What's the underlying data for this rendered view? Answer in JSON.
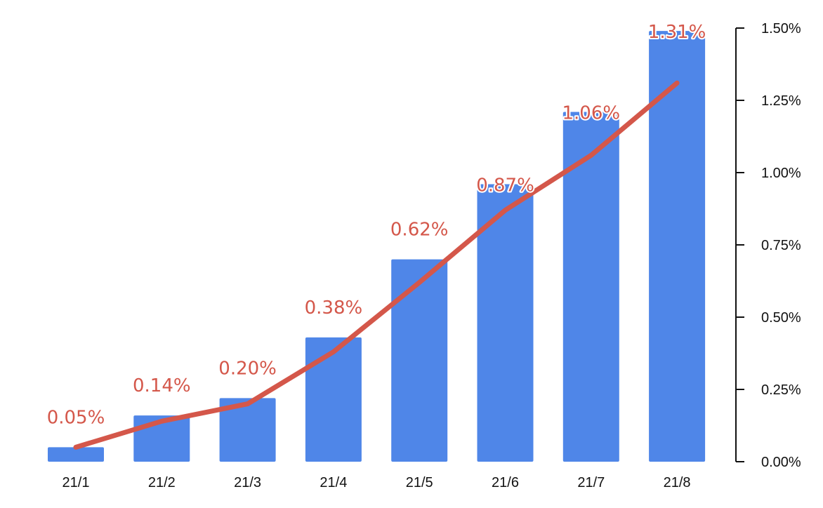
{
  "chart_data": {
    "type": "bar",
    "title": "",
    "xlabel": "",
    "ylabel": "",
    "categories": [
      "21/1",
      "21/2",
      "21/3",
      "21/4",
      "21/5",
      "21/6",
      "21/7",
      "21/8"
    ],
    "series": [
      {
        "name": "bar",
        "type": "bar",
        "values": [
          0.05,
          0.16,
          0.22,
          0.43,
          0.7,
          0.96,
          1.21,
          1.49
        ]
      },
      {
        "name": "line",
        "type": "line",
        "values": [
          0.05,
          0.14,
          0.2,
          0.38,
          0.62,
          0.87,
          1.06,
          1.31
        ],
        "labels": [
          "0.05%",
          "0.14%",
          "0.20%",
          "0.38%",
          "0.62%",
          "0.87%",
          "1.06%",
          "1.31%"
        ]
      }
    ],
    "y_axis": {
      "side": "right",
      "ylim": [
        0,
        1.5
      ],
      "ticks": [
        0,
        0.25,
        0.5,
        0.75,
        1.0,
        1.25,
        1.5
      ],
      "tick_labels": [
        "0.00%",
        "0.25%",
        "0.50%",
        "0.75%",
        "1.00%",
        "1.25%",
        "1.50%"
      ]
    },
    "grid": false,
    "legend": "none",
    "colors": {
      "bar": "#4f86e8",
      "line": "#d4574a",
      "axis": "#111111"
    }
  }
}
